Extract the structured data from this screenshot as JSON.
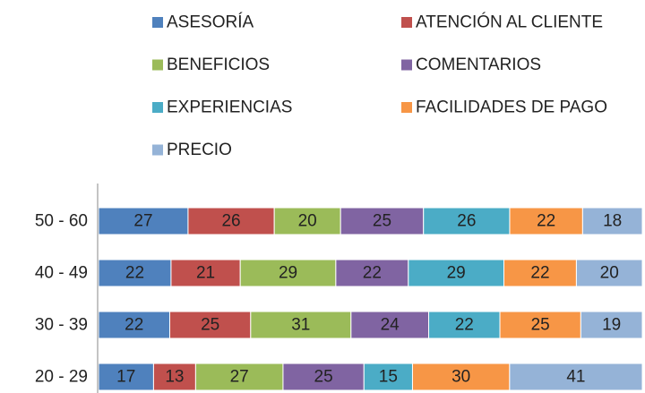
{
  "chart_data": {
    "type": "bar",
    "orientation": "horizontal",
    "stacked": "percent",
    "categories": [
      "20 - 29",
      "30 - 39",
      "40 - 49",
      "50 - 60"
    ],
    "series": [
      {
        "name": "ASESORÍA",
        "color": "#4f81bd",
        "values": [
          17,
          22,
          22,
          27
        ]
      },
      {
        "name": "ATENCIÓN AL CLIENTE",
        "color": "#c0504d",
        "values": [
          13,
          25,
          21,
          26
        ]
      },
      {
        "name": "BENEFICIOS",
        "color": "#9bbb59",
        "values": [
          27,
          31,
          29,
          20
        ]
      },
      {
        "name": "COMENTARIOS",
        "color": "#8064a2",
        "values": [
          25,
          24,
          22,
          25
        ]
      },
      {
        "name": "EXPERIENCIAS",
        "color": "#4bacc6",
        "values": [
          15,
          22,
          29,
          26
        ]
      },
      {
        "name": "FACILIDADES DE PAGO",
        "color": "#f79646",
        "values": [
          30,
          25,
          22,
          22
        ]
      },
      {
        "name": "PRECIO",
        "color": "#95b3d7",
        "values": [
          41,
          19,
          20,
          18
        ]
      }
    ],
    "legend": "top"
  }
}
